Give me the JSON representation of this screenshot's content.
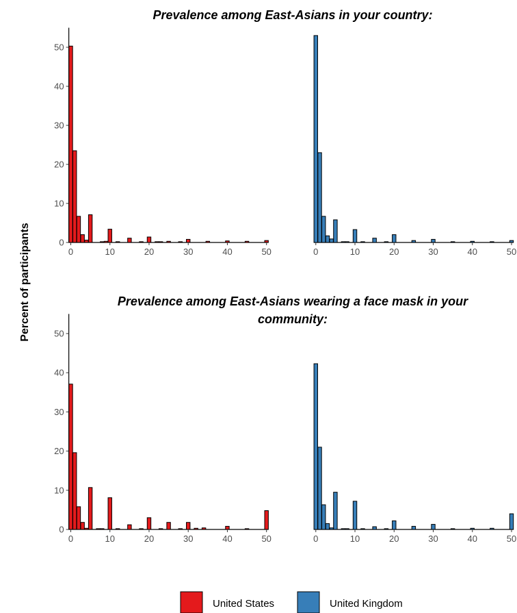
{
  "ylabel": "Percent of participants",
  "colors": {
    "us": "#e41a1c",
    "uk": "#377eb8",
    "outline": "#000000"
  },
  "chart_data": [
    {
      "type": "bar",
      "title": "Prevalence among East-Asians in your country:",
      "xlabel": "",
      "ylabel": "Percent of participants",
      "xlim": [
        -0.5,
        50.5
      ],
      "ylim": [
        0,
        55
      ],
      "x_ticks": [
        0,
        10,
        20,
        30,
        40,
        50
      ],
      "y_ticks": [
        0,
        10,
        20,
        30,
        40,
        50
      ],
      "series": [
        {
          "name": "United States",
          "x": [
            0,
            1,
            2,
            3,
            4,
            5,
            8,
            9,
            10,
            12,
            15,
            18,
            20,
            22,
            23,
            25,
            28,
            30,
            35,
            40,
            45,
            50
          ],
          "values": [
            50.3,
            23.5,
            6.7,
            2.0,
            0.6,
            7.1,
            0.2,
            0.3,
            3.4,
            0.2,
            1.1,
            0.2,
            1.4,
            0.2,
            0.2,
            0.3,
            0.2,
            0.8,
            0.3,
            0.4,
            0.3,
            0.5
          ]
        },
        {
          "name": "United Kingdom",
          "x": [
            0,
            1,
            2,
            3,
            4,
            5,
            7,
            8,
            10,
            12,
            15,
            18,
            20,
            25,
            30,
            35,
            40,
            45,
            50
          ],
          "values": [
            53.0,
            23.0,
            6.7,
            1.7,
            0.9,
            5.8,
            0.2,
            0.2,
            3.3,
            0.2,
            1.1,
            0.2,
            2.0,
            0.5,
            0.8,
            0.2,
            0.3,
            0.2,
            0.5
          ]
        }
      ]
    },
    {
      "type": "bar",
      "title": "Prevalence among East-Asians wearing a face mask in your community:",
      "title_lines": [
        "Prevalence among East-Asians wearing a face mask in your",
        "community:"
      ],
      "xlabel": "",
      "ylabel": "Percent of participants",
      "xlim": [
        -0.5,
        50.5
      ],
      "ylim": [
        0,
        55
      ],
      "x_ticks": [
        0,
        10,
        20,
        30,
        40,
        50
      ],
      "y_ticks": [
        0,
        10,
        20,
        30,
        40,
        50
      ],
      "series": [
        {
          "name": "United States",
          "x": [
            0,
            1,
            2,
            3,
            4,
            5,
            7,
            8,
            10,
            12,
            15,
            18,
            20,
            23,
            25,
            28,
            30,
            32,
            34,
            40,
            45,
            50
          ],
          "values": [
            37.1,
            19.6,
            5.8,
            1.8,
            0.3,
            10.7,
            0.2,
            0.2,
            8.1,
            0.2,
            1.2,
            0.2,
            3.0,
            0.2,
            1.8,
            0.2,
            1.8,
            0.3,
            0.4,
            0.8,
            0.2,
            4.8
          ]
        },
        {
          "name": "United Kingdom",
          "x": [
            0,
            1,
            2,
            3,
            4,
            5,
            7,
            8,
            10,
            12,
            15,
            18,
            20,
            25,
            30,
            35,
            40,
            45,
            50
          ],
          "values": [
            42.3,
            21.0,
            6.3,
            1.5,
            0.4,
            9.5,
            0.2,
            0.2,
            7.2,
            0.2,
            0.7,
            0.2,
            2.2,
            0.8,
            1.3,
            0.2,
            0.3,
            0.3,
            4.0
          ]
        }
      ]
    }
  ],
  "legend": {
    "items": [
      {
        "label": "United States",
        "color": "#e41a1c"
      },
      {
        "label": "United Kingdom",
        "color": "#377eb8"
      }
    ]
  }
}
